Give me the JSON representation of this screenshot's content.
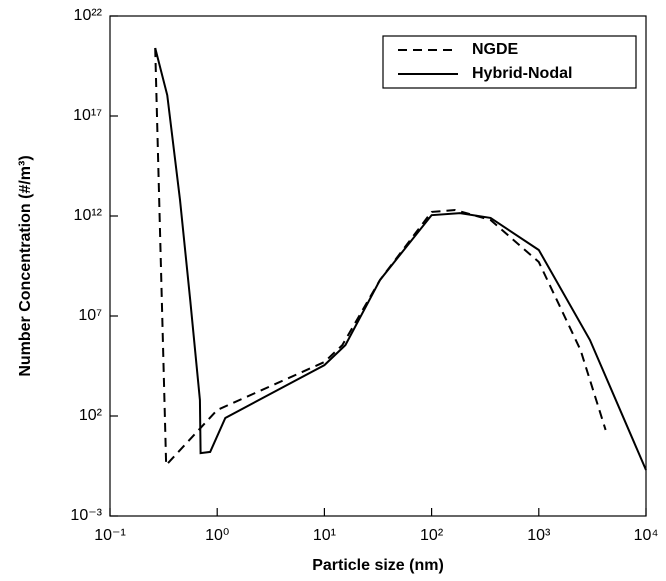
{
  "chart_data": {
    "type": "line",
    "xlabel": "Particle size (nm)",
    "ylabel": "Number Concentration (#/m³)",
    "xscale": "log",
    "yscale": "log",
    "xlim": [
      0.1,
      10000
    ],
    "ylim": [
      0.001,
      1e+22
    ],
    "xticks": [
      {
        "value": 0.1,
        "label": "10⁻¹"
      },
      {
        "value": 1,
        "label": "10⁰"
      },
      {
        "value": 10,
        "label": "10¹"
      },
      {
        "value": 100,
        "label": "10²"
      },
      {
        "value": 1000,
        "label": "10³"
      },
      {
        "value": 10000,
        "label": "10⁴"
      }
    ],
    "yticks": [
      {
        "value": 0.001,
        "label": "10⁻³"
      },
      {
        "value": 100,
        "label": "10²"
      },
      {
        "value": 10000000,
        "label": "10⁷"
      },
      {
        "value": 1000000000000.0,
        "label": "10¹²"
      },
      {
        "value": 1e+17,
        "label": "10¹⁷"
      },
      {
        "value": 1e+22,
        "label": "10²²"
      }
    ],
    "legend": "upper right",
    "series": [
      {
        "name": "NGDE",
        "color": "#000000",
        "dash": "dashed",
        "x": [
          0.264,
          0.334,
          1,
          10,
          14.7,
          33,
          100,
          166,
          355,
          1000,
          2450,
          4200
        ],
        "values": [
          2.5e+20,
          0.35,
          200,
          50000,
          350000,
          630000000,
          1600000000000.0,
          2000000000000.0,
          630000000000.0,
          5000000000,
          200000,
          20
        ]
      },
      {
        "name": "Hybrid-Nodal",
        "color": "#000000",
        "dash": "solid",
        "x": [
          0.264,
          0.342,
          0.45,
          0.56,
          0.69,
          0.7,
          0.86,
          1.19,
          10,
          15.7,
          33,
          100,
          184,
          355,
          1000,
          3000,
          10000
        ],
        "values": [
          2.5e+20,
          1.1e+18,
          6300000000000.0,
          63000000,
          630,
          1.4,
          1.6,
          80,
          35000,
          350000,
          630000000,
          1100000000000.0,
          1400000000000.0,
          800000000000.0,
          20000000000,
          630000,
          0.2
        ]
      }
    ]
  }
}
